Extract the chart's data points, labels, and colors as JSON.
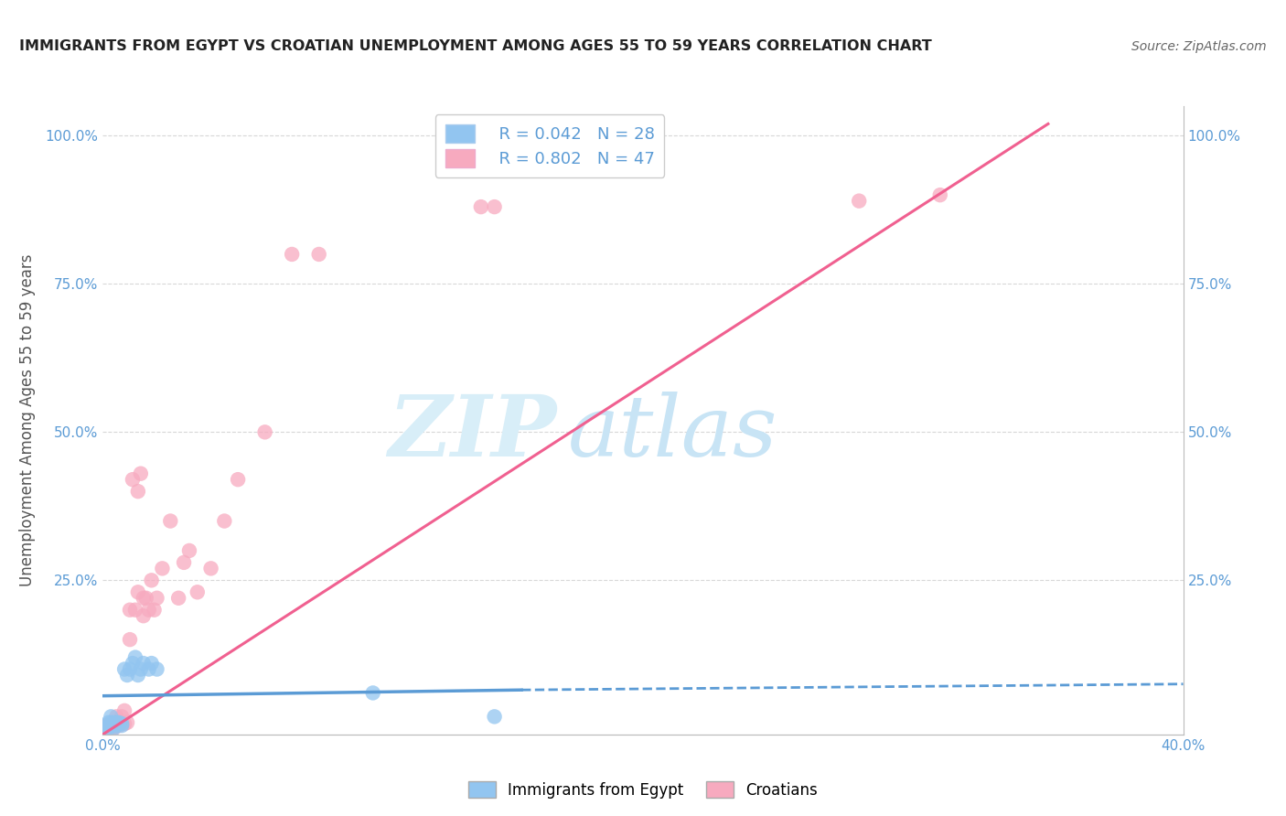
{
  "title": "IMMIGRANTS FROM EGYPT VS CROATIAN UNEMPLOYMENT AMONG AGES 55 TO 59 YEARS CORRELATION CHART",
  "source": "Source: ZipAtlas.com",
  "ylabel": "Unemployment Among Ages 55 to 59 years",
  "xlim": [
    0.0,
    0.4
  ],
  "ylim": [
    -0.01,
    1.05
  ],
  "legend_r_egypt": "R = 0.042",
  "legend_n_egypt": "N = 28",
  "legend_r_croatian": "R = 0.802",
  "legend_n_croatian": "N = 47",
  "egypt_color": "#92C5F0",
  "croatian_color": "#F7AABF",
  "egypt_line_color": "#5B9BD5",
  "croatian_line_color": "#F06090",
  "background_color": "#ffffff",
  "watermark_zip": "ZIP",
  "watermark_atlas": "atlas",
  "watermark_color": "#D8EEF8",
  "egypt_scatter_x": [
    0.001,
    0.001,
    0.002,
    0.002,
    0.003,
    0.003,
    0.003,
    0.004,
    0.004,
    0.005,
    0.005,
    0.006,
    0.006,
    0.007,
    0.007,
    0.008,
    0.009,
    0.01,
    0.011,
    0.012,
    0.013,
    0.014,
    0.015,
    0.017,
    0.018,
    0.02,
    0.1,
    0.145
  ],
  "egypt_scatter_y": [
    0.0,
    0.005,
    0.0,
    0.01,
    0.005,
    0.01,
    0.02,
    0.0,
    0.01,
    0.01,
    0.005,
    0.008,
    0.01,
    0.005,
    0.008,
    0.1,
    0.09,
    0.1,
    0.11,
    0.12,
    0.09,
    0.1,
    0.11,
    0.1,
    0.11,
    0.1,
    0.06,
    0.02
  ],
  "croatian_scatter_x": [
    0.001,
    0.001,
    0.002,
    0.002,
    0.003,
    0.003,
    0.004,
    0.004,
    0.005,
    0.005,
    0.006,
    0.006,
    0.007,
    0.007,
    0.008,
    0.008,
    0.009,
    0.01,
    0.01,
    0.011,
    0.012,
    0.013,
    0.013,
    0.014,
    0.015,
    0.015,
    0.016,
    0.017,
    0.018,
    0.019,
    0.02,
    0.022,
    0.025,
    0.028,
    0.03,
    0.032,
    0.035,
    0.04,
    0.045,
    0.05,
    0.06,
    0.07,
    0.08,
    0.14,
    0.145,
    0.28,
    0.31
  ],
  "croatian_scatter_y": [
    0.0,
    0.005,
    0.0,
    0.005,
    0.0,
    0.005,
    0.0,
    0.005,
    0.005,
    0.02,
    0.01,
    0.005,
    0.01,
    0.02,
    0.008,
    0.03,
    0.01,
    0.15,
    0.2,
    0.42,
    0.2,
    0.4,
    0.23,
    0.43,
    0.22,
    0.19,
    0.22,
    0.2,
    0.25,
    0.2,
    0.22,
    0.27,
    0.35,
    0.22,
    0.28,
    0.3,
    0.23,
    0.27,
    0.35,
    0.42,
    0.5,
    0.8,
    0.8,
    0.88,
    0.88,
    0.89,
    0.9
  ],
  "egypt_trend_x0": 0.0,
  "egypt_trend_x1": 0.155,
  "egypt_trend_x2": 0.4,
  "egypt_trend_y0": 0.055,
  "egypt_trend_y1": 0.065,
  "egypt_trend_y2": 0.075,
  "croatian_trend_x0": 0.0,
  "croatian_trend_x1": 0.35,
  "croatian_trend_y0": -0.01,
  "croatian_trend_y1": 1.02
}
